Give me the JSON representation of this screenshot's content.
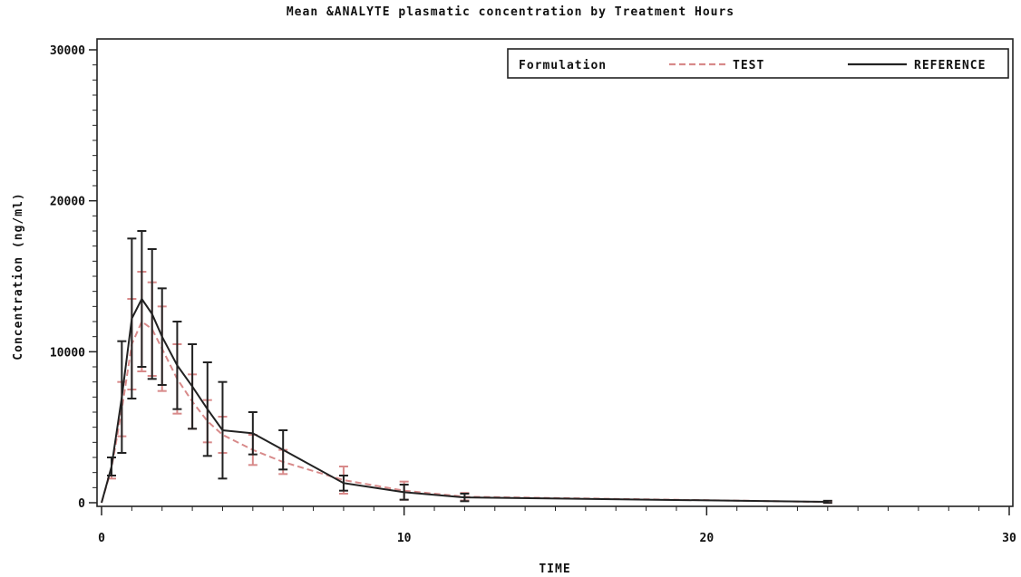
{
  "chart_data": {
    "type": "line",
    "title": "Mean  &ANALYTE plasmatic concentration by Treatment Hours",
    "xlabel": "TIME",
    "ylabel": "Concentration (ng/ml)",
    "xlim": [
      0,
      30
    ],
    "ylim": [
      0,
      30000
    ],
    "x_ticks": [
      0,
      10,
      20,
      30
    ],
    "y_ticks": [
      0,
      10000,
      20000,
      30000
    ],
    "grid": false,
    "legend": {
      "title": "Formulation",
      "placement": "top-right"
    },
    "x": [
      0,
      0.33,
      0.67,
      1,
      1.33,
      1.67,
      2,
      2.5,
      3,
      3.5,
      4,
      5,
      6,
      8,
      10,
      12,
      24
    ],
    "series": [
      {
        "name": "TEST",
        "color": "#d88a8a",
        "dash": true,
        "values": [
          0,
          2300,
          6200,
          10500,
          12000,
          11500,
          10200,
          8200,
          6700,
          5400,
          4500,
          3500,
          2700,
          1500,
          800,
          400,
          50
        ],
        "err": [
          0,
          700,
          1800,
          3000,
          3300,
          3100,
          2800,
          2300,
          1800,
          1400,
          1200,
          1000,
          800,
          900,
          600,
          250,
          60
        ]
      },
      {
        "name": "REFERENCE",
        "color": "#222222",
        "dash": false,
        "values": [
          0,
          2400,
          7000,
          12200,
          13500,
          12500,
          11000,
          9100,
          7700,
          6200,
          4800,
          4600,
          3500,
          1300,
          700,
          350,
          60
        ],
        "err": [
          0,
          600,
          3700,
          5300,
          4500,
          4300,
          3200,
          2900,
          2800,
          3100,
          3200,
          1400,
          1300,
          500,
          500,
          250,
          70
        ]
      }
    ]
  }
}
